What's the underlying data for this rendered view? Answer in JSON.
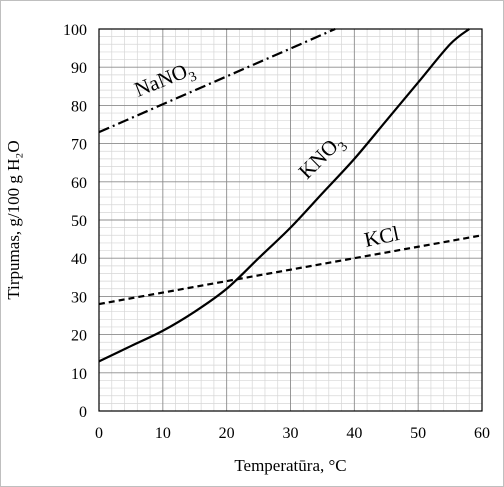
{
  "chart_data": {
    "type": "line",
    "xlabel": "Temperatūra, °C",
    "ylabel": "Tirpumas, g/100 g H₂O",
    "xlim": [
      0,
      60
    ],
    "ylim": [
      0,
      100
    ],
    "x_ticks": [
      "0",
      "10",
      "20",
      "30",
      "40",
      "50",
      "60"
    ],
    "y_ticks": [
      "0",
      "10",
      "20",
      "30",
      "40",
      "50",
      "60",
      "70",
      "80",
      "90",
      "100"
    ],
    "grid": true,
    "series": [
      {
        "name": "NaNO₃",
        "label_base": "NaNO",
        "label_sub": "3",
        "line_style": "dash-dot",
        "color": "#000000",
        "x": [
          0,
          37
        ],
        "y": [
          73,
          100
        ]
      },
      {
        "name": "KNO₃",
        "label_base": "KNO",
        "label_sub": "3",
        "line_style": "solid",
        "color": "#000000",
        "x": [
          0,
          5,
          10,
          15,
          20,
          25,
          30,
          35,
          40,
          45,
          50,
          55,
          58
        ],
        "y": [
          13,
          17,
          21,
          26,
          32,
          40,
          48,
          57,
          66,
          76,
          86,
          96,
          100
        ]
      },
      {
        "name": "KCl",
        "label_base": "KCl",
        "label_sub": "",
        "line_style": "dashed",
        "color": "#000000",
        "x": [
          0,
          10,
          20,
          30,
          40,
          50,
          60
        ],
        "y": [
          28,
          31,
          34,
          37,
          40,
          43,
          46
        ]
      }
    ]
  }
}
